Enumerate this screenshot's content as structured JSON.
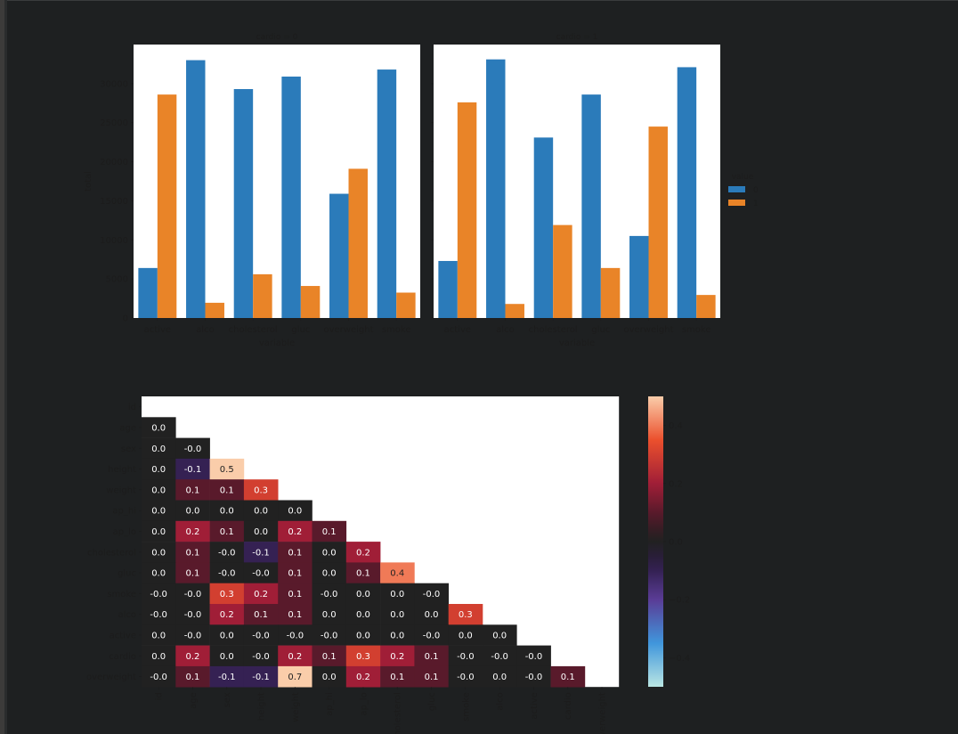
{
  "colors": {
    "series_0": "#2b7bba",
    "series_1": "#e98428",
    "text": "#1c1c1c",
    "panel_bg": "#ffffff"
  },
  "chart_data": [
    {
      "type": "bar",
      "facet_by": "cardio",
      "panels": [
        {
          "title": "cardio = 0",
          "categories": [
            "active",
            "alco",
            "cholesterol",
            "gluc",
            "overweight",
            "smoke"
          ],
          "series": [
            {
              "name": "0",
              "values": [
                6400,
                33000,
                29300,
                30900,
                15900,
                31800
              ]
            },
            {
              "name": "1",
              "values": [
                28600,
                1950,
                5600,
                4100,
                19100,
                3250
              ]
            }
          ]
        },
        {
          "title": "cardio = 1",
          "categories": [
            "active",
            "alco",
            "cholesterol",
            "gluc",
            "overweight",
            "smoke"
          ],
          "series": [
            {
              "name": "0",
              "values": [
                7300,
                33100,
                23100,
                28600,
                10500,
                32100
              ]
            },
            {
              "name": "1",
              "values": [
                27600,
                1800,
                11900,
                6400,
                24500,
                2950
              ]
            }
          ]
        }
      ],
      "xlabel": "variable",
      "ylabel": "total",
      "ylim": [
        0,
        35000
      ],
      "yticks": [
        0,
        5000,
        10000,
        15000,
        20000,
        25000,
        30000
      ],
      "grid": false,
      "legend": {
        "title": "value",
        "entries": [
          "0",
          "1"
        ],
        "placement": "right"
      }
    },
    {
      "type": "heatmap",
      "mask": "upper-triangle",
      "annotated": true,
      "labels": [
        "id",
        "age",
        "sex",
        "height",
        "weight",
        "ap_hi",
        "ap_lo",
        "cholesterol",
        "gluc",
        "smoke",
        "alco",
        "active",
        "cardio",
        "overweight"
      ],
      "matrix": [
        [],
        [
          0.0
        ],
        [
          0.0,
          -0.0
        ],
        [
          0.0,
          -0.1,
          0.5
        ],
        [
          0.0,
          0.1,
          0.1,
          0.3
        ],
        [
          0.0,
          0.0,
          0.0,
          0.0,
          0.0
        ],
        [
          0.0,
          0.2,
          0.1,
          0.0,
          0.2,
          0.1
        ],
        [
          0.0,
          0.1,
          -0.0,
          -0.1,
          0.1,
          0.0,
          0.2
        ],
        [
          0.0,
          0.1,
          -0.0,
          -0.0,
          0.1,
          0.0,
          0.1,
          0.4
        ],
        [
          -0.0,
          -0.0,
          0.3,
          0.2,
          0.1,
          -0.0,
          0.0,
          0.0,
          -0.0
        ],
        [
          -0.0,
          -0.0,
          0.2,
          0.1,
          0.1,
          0.0,
          0.0,
          0.0,
          0.0,
          0.3
        ],
        [
          0.0,
          -0.0,
          0.0,
          -0.0,
          -0.0,
          -0.0,
          0.0,
          0.0,
          -0.0,
          0.0,
          0.0
        ],
        [
          0.0,
          0.2,
          0.0,
          -0.0,
          0.2,
          0.1,
          0.3,
          0.2,
          0.1,
          -0.0,
          -0.0,
          -0.0
        ],
        [
          -0.0,
          0.1,
          -0.1,
          -0.1,
          0.7,
          0.0,
          0.2,
          0.1,
          0.1,
          -0.0,
          0.0,
          -0.0,
          0.1
        ]
      ],
      "colorbar": {
        "vmin": -0.5,
        "vmax": 0.5,
        "ticks": [
          "0.4",
          "0.2",
          "0.0",
          "−0.2",
          "−0.4"
        ]
      }
    }
  ]
}
